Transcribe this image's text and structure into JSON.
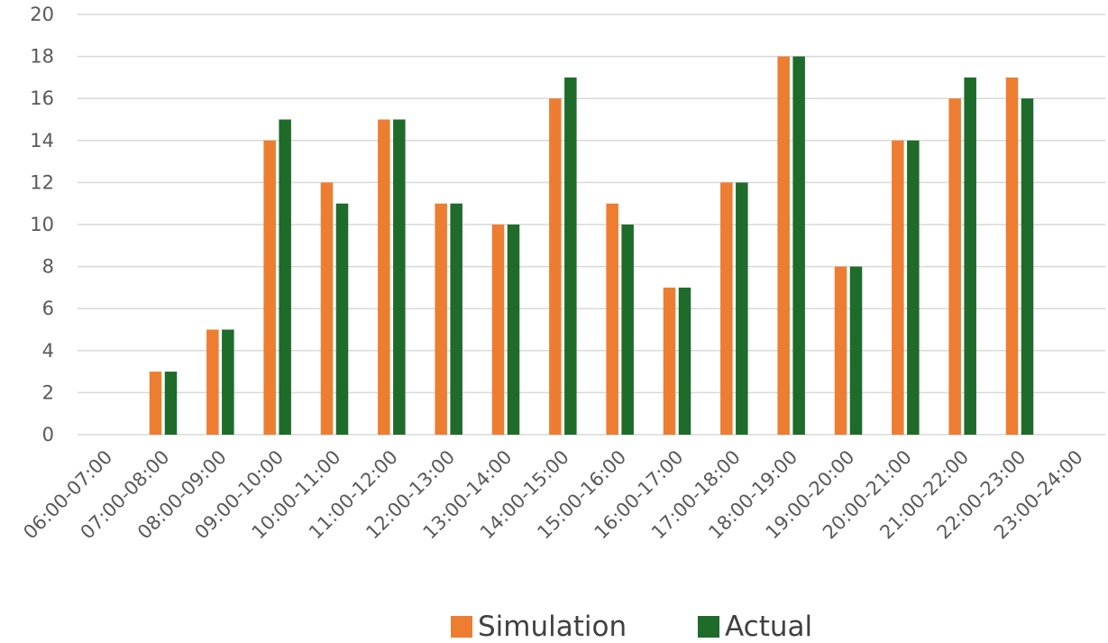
{
  "chart_data": {
    "type": "bar",
    "title": "",
    "xlabel": "",
    "ylabel": "",
    "categories": [
      "06:00-07:00",
      "07:00-08:00",
      "08:00-09:00",
      "09:00-10:00",
      "10:00-11:00",
      "11:00-12:00",
      "12:00-13:00",
      "13:00-14:00",
      "14:00-15:00",
      "15:00-16:00",
      "16:00-17:00",
      "17:00-18:00",
      "18:00-19:00",
      "19:00-20:00",
      "20:00-21:00",
      "21:00-22:00",
      "22:00-23:00",
      "23:00-24:00"
    ],
    "series": [
      {
        "name": "Simulation",
        "color": "#ED7D31",
        "values": [
          0,
          3,
          5,
          14,
          12,
          15,
          11,
          10,
          16,
          11,
          7,
          12,
          18,
          8,
          14,
          16,
          17,
          0
        ]
      },
      {
        "name": "Actual",
        "color": "#1E6B2A",
        "values": [
          0,
          3,
          5,
          15,
          11,
          15,
          11,
          10,
          17,
          10,
          7,
          12,
          18,
          8,
          14,
          17,
          16,
          0
        ]
      }
    ],
    "ylim": [
      0,
      20
    ],
    "yticks": [
      0,
      2,
      4,
      6,
      8,
      10,
      12,
      14,
      16,
      18,
      20
    ],
    "grid": true,
    "legend_position": "bottom",
    "gridline_color": "#D9D9D9"
  }
}
